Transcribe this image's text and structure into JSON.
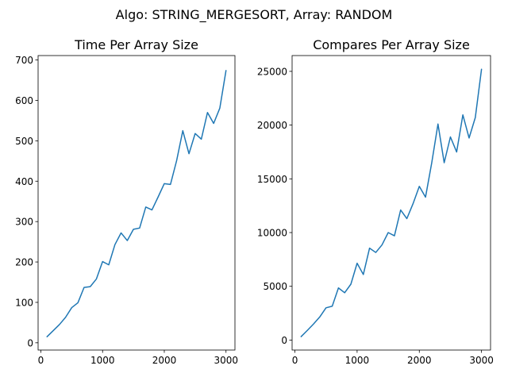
{
  "figure": {
    "suptitle": "Algo: STRING_MERGESORT, Array: RANDOM"
  },
  "chart_data": [
    {
      "type": "line",
      "title": "Time Per Array Size",
      "xlabel": "",
      "ylabel": "",
      "xlim": [
        -45,
        3145
      ],
      "ylim": [
        -18,
        711
      ],
      "xticks": [
        0,
        1000,
        2000,
        3000
      ],
      "yticks": [
        0,
        100,
        200,
        300,
        400,
        500,
        600,
        700
      ],
      "grid": false,
      "color": "#1f77b4",
      "x": [
        100,
        200,
        300,
        400,
        500,
        600,
        700,
        800,
        900,
        1000,
        1100,
        1200,
        1300,
        1400,
        1500,
        1600,
        1700,
        1800,
        1900,
        2000,
        2100,
        2200,
        2300,
        2400,
        2500,
        2600,
        2700,
        2800,
        2900,
        3000
      ],
      "y": [
        15,
        30,
        45,
        63,
        87,
        99,
        137,
        139,
        158,
        201,
        193,
        243,
        272,
        253,
        281,
        284,
        336,
        329,
        361,
        394,
        392,
        451,
        525,
        468,
        518,
        504,
        570,
        543,
        581,
        674
      ]
    },
    {
      "type": "line",
      "title": "Compares Per Array Size",
      "xlabel": "",
      "ylabel": "",
      "xlim": [
        -45,
        3145
      ],
      "ylim": [
        -930,
        26470
      ],
      "xticks": [
        0,
        1000,
        2000,
        3000
      ],
      "yticks": [
        0,
        5000,
        10000,
        15000,
        20000,
        25000
      ],
      "grid": false,
      "color": "#1f77b4",
      "x": [
        100,
        200,
        300,
        400,
        500,
        600,
        700,
        800,
        900,
        1000,
        1100,
        1200,
        1300,
        1400,
        1500,
        1600,
        1700,
        1800,
        1900,
        2000,
        2100,
        2200,
        2300,
        2400,
        2500,
        2600,
        2700,
        2800,
        2900,
        3000
      ],
      "y": [
        320,
        900,
        1500,
        2150,
        3000,
        3150,
        4850,
        4400,
        5200,
        7150,
        6100,
        8550,
        8150,
        8850,
        10000,
        9700,
        12100,
        11300,
        12700,
        14300,
        13300,
        16500,
        20100,
        16500,
        18900,
        17500,
        20950,
        18800,
        20700,
        25200
      ]
    }
  ]
}
